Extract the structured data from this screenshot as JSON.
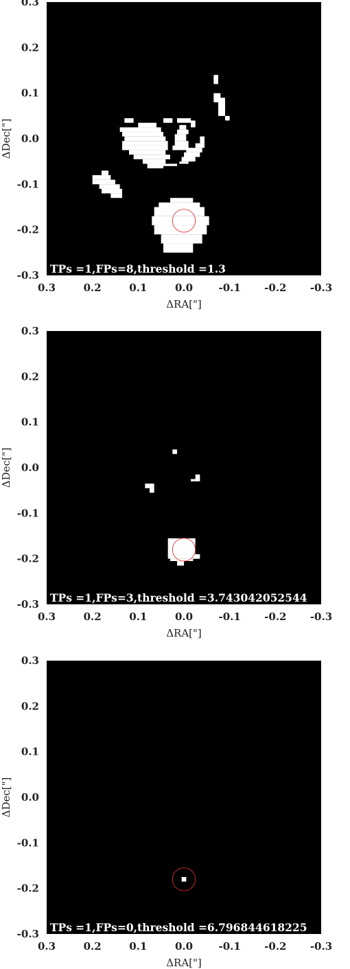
{
  "chart_data": [
    {
      "type": "heatmap",
      "xlabel": "ΔRA[\"]",
      "ylabel": "ΔDec[\"]",
      "xlim": [
        0.3,
        -0.3
      ],
      "ylim": [
        -0.3,
        0.3
      ],
      "xticks": [
        "0.3",
        "0.2",
        "0.1",
        "0.0",
        "-0.1",
        "-0.2",
        "-0.3"
      ],
      "yticks": [
        "0.3",
        "0.2",
        "0.1",
        "0.0",
        "-0.1",
        "-0.2",
        "-0.3"
      ],
      "annotation": "TPs =1,FPs=8,threshold =1.3",
      "background_color": "#000000",
      "mask_color": "#ffffff",
      "marker_color": "#e03030",
      "marker": {
        "ra": 0.0,
        "dec": -0.18,
        "radius": 0.025
      },
      "mask_regions": [
        {
          "dra": [
            -0.065,
            -0.075
          ],
          "ddec": [
            0.14,
            0.12
          ]
        },
        {
          "dra": [
            -0.065,
            -0.08
          ],
          "ddec": [
            0.1,
            0.08
          ]
        },
        {
          "dra": [
            -0.075,
            -0.09
          ],
          "ddec": [
            0.09,
            0.05
          ]
        },
        {
          "dra": [
            -0.09,
            -0.1
          ],
          "ddec": [
            0.05,
            0.04
          ]
        },
        {
          "dra": [
            0.13,
            0.11
          ],
          "ddec": [
            0.045,
            0.035
          ]
        },
        {
          "dra": [
            0.045,
            0.025
          ],
          "ddec": [
            0.045,
            0.035
          ]
        },
        {
          "dra": [
            0.015,
            -0.015
          ],
          "ddec": [
            0.045,
            0.035
          ]
        },
        {
          "dra": [
            -0.015,
            -0.025
          ],
          "ddec": [
            0.04,
            0.025
          ]
        },
        {
          "dra": [
            0.1,
            0.06
          ],
          "ddec": [
            0.035,
            0.025
          ]
        },
        {
          "dra": [
            0.14,
            0.05
          ],
          "ddec": [
            0.025,
            0.015
          ]
        },
        {
          "dra": [
            0.135,
            0.045
          ],
          "ddec": [
            0.015,
            0.005
          ]
        },
        {
          "dra": [
            0.13,
            0.04
          ],
          "ddec": [
            0.005,
            -0.005
          ]
        },
        {
          "dra": [
            0.135,
            0.035
          ],
          "ddec": [
            -0.005,
            -0.015
          ]
        },
        {
          "dra": [
            0.135,
            0.035
          ],
          "ddec": [
            -0.015,
            -0.025
          ]
        },
        {
          "dra": [
            0.12,
            0.04
          ],
          "ddec": [
            -0.025,
            -0.035
          ]
        },
        {
          "dra": [
            0.11,
            0.03
          ],
          "ddec": [
            -0.035,
            -0.045
          ]
        },
        {
          "dra": [
            0.09,
            0.04
          ],
          "ddec": [
            -0.045,
            -0.055
          ]
        },
        {
          "dra": [
            0.08,
            0.045
          ],
          "ddec": [
            -0.055,
            -0.065
          ]
        },
        {
          "dra": [
            0.045,
            0.015
          ],
          "ddec": [
            -0.055,
            -0.06
          ]
        },
        {
          "dra": [
            0.01,
            -0.005
          ],
          "ddec": [
            0.03,
            0.02
          ]
        },
        {
          "dra": [
            0.015,
            -0.01
          ],
          "ddec": [
            0.02,
            0.01
          ]
        },
        {
          "dra": [
            0.02,
            -0.005
          ],
          "ddec": [
            0.01,
            -0.005
          ]
        },
        {
          "dra": [
            0.02,
            -0.01
          ],
          "ddec": [
            -0.005,
            -0.015
          ]
        },
        {
          "dra": [
            0.025,
            -0.01
          ],
          "ddec": [
            -0.015,
            -0.025
          ]
        },
        {
          "dra": [
            -0.035,
            -0.045
          ],
          "ddec": [
            0.005,
            -0.01
          ]
        },
        {
          "dra": [
            -0.025,
            -0.045
          ],
          "ddec": [
            -0.01,
            -0.02
          ]
        },
        {
          "dra": [
            -0.005,
            -0.04
          ],
          "ddec": [
            -0.02,
            -0.03
          ]
        },
        {
          "dra": [
            0.0,
            -0.035
          ],
          "ddec": [
            -0.03,
            -0.04
          ]
        },
        {
          "dra": [
            0.005,
            -0.025
          ],
          "ddec": [
            -0.04,
            -0.05
          ]
        },
        {
          "dra": [
            0.01,
            -0.01
          ],
          "ddec": [
            -0.05,
            -0.055
          ]
        },
        {
          "dra": [
            0.18,
            0.165
          ],
          "ddec": [
            -0.07,
            -0.08
          ]
        },
        {
          "dra": [
            0.2,
            0.16
          ],
          "ddec": [
            -0.08,
            -0.09
          ]
        },
        {
          "dra": [
            0.2,
            0.15
          ],
          "ddec": [
            -0.09,
            -0.1
          ]
        },
        {
          "dra": [
            0.185,
            0.14
          ],
          "ddec": [
            -0.1,
            -0.11
          ]
        },
        {
          "dra": [
            0.18,
            0.135
          ],
          "ddec": [
            -0.11,
            -0.12
          ]
        },
        {
          "dra": [
            0.16,
            0.135
          ],
          "ddec": [
            -0.12,
            -0.13
          ]
        },
        {
          "dra": [
            0.03,
            -0.02
          ],
          "ddec": [
            -0.13,
            -0.14
          ]
        },
        {
          "dra": [
            0.055,
            -0.035
          ],
          "ddec": [
            -0.14,
            -0.15
          ]
        },
        {
          "dra": [
            0.065,
            -0.045
          ],
          "ddec": [
            -0.15,
            -0.17
          ]
        },
        {
          "dra": [
            0.07,
            -0.055
          ],
          "ddec": [
            -0.17,
            -0.19
          ]
        },
        {
          "dra": [
            0.065,
            -0.05
          ],
          "ddec": [
            -0.19,
            -0.21
          ]
        },
        {
          "dra": [
            0.05,
            -0.04
          ],
          "ddec": [
            -0.21,
            -0.23
          ]
        },
        {
          "dra": [
            0.045,
            -0.02
          ],
          "ddec": [
            -0.23,
            -0.25
          ]
        }
      ]
    },
    {
      "type": "heatmap",
      "xlabel": "ΔRA[\"]",
      "ylabel": "ΔDec[\"]",
      "xlim": [
        0.3,
        -0.3
      ],
      "ylim": [
        -0.3,
        0.3
      ],
      "xticks": [
        "0.3",
        "0.2",
        "0.1",
        "0.0",
        "-0.1",
        "-0.2",
        "-0.3"
      ],
      "yticks": [
        "0.3",
        "0.2",
        "0.1",
        "0.0",
        "-0.1",
        "-0.2",
        "-0.3"
      ],
      "annotation": "TPs =1,FPs=3,threshold =3.743042052544",
      "background_color": "#000000",
      "mask_color": "#ffffff",
      "marker_color": "#e03030",
      "marker": {
        "ra": 0.0,
        "dec": -0.18,
        "radius": 0.025
      },
      "mask_regions": [
        {
          "dra": [
            0.025,
            0.015
          ],
          "ddec": [
            0.04,
            0.03
          ]
        },
        {
          "dra": [
            -0.025,
            -0.035
          ],
          "ddec": [
            -0.015,
            -0.03
          ]
        },
        {
          "dra": [
            -0.015,
            -0.025
          ],
          "ddec": [
            -0.025,
            -0.03
          ]
        },
        {
          "dra": [
            0.085,
            0.065
          ],
          "ddec": [
            -0.035,
            -0.045
          ]
        },
        {
          "dra": [
            0.075,
            0.065
          ],
          "ddec": [
            -0.045,
            -0.055
          ]
        },
        {
          "dra": [
            0.035,
            -0.025
          ],
          "ddec": [
            -0.155,
            -0.19
          ]
        },
        {
          "dra": [
            0.035,
            -0.035
          ],
          "ddec": [
            -0.19,
            -0.2
          ]
        },
        {
          "dra": [
            0.03,
            -0.02
          ],
          "ddec": [
            -0.2,
            -0.205
          ]
        },
        {
          "dra": [
            0.015,
            -0.0
          ],
          "ddec": [
            -0.205,
            -0.215
          ]
        }
      ]
    },
    {
      "type": "heatmap",
      "xlabel": "ΔRA[\"]",
      "ylabel": "ΔDec[\"]",
      "xlim": [
        0.3,
        -0.3
      ],
      "ylim": [
        -0.3,
        0.3
      ],
      "xticks": [
        "0.3",
        "0.2",
        "0.1",
        "0.0",
        "-0.1",
        "-0.2",
        "-0.3"
      ],
      "yticks": [
        "0.3",
        "0.2",
        "0.1",
        "0.0",
        "-0.1",
        "-0.2",
        "-0.3"
      ],
      "annotation": "TPs =1,FPs=0,threshold =6.796844618225",
      "background_color": "#000000",
      "mask_color": "#ffffff",
      "marker_color": "#e03030",
      "marker": {
        "ra": 0.0,
        "dec": -0.18,
        "radius": 0.025
      },
      "mask_regions": [
        {
          "dra": [
            0.005,
            -0.005
          ],
          "ddec": [
            -0.175,
            -0.185
          ]
        }
      ]
    }
  ]
}
